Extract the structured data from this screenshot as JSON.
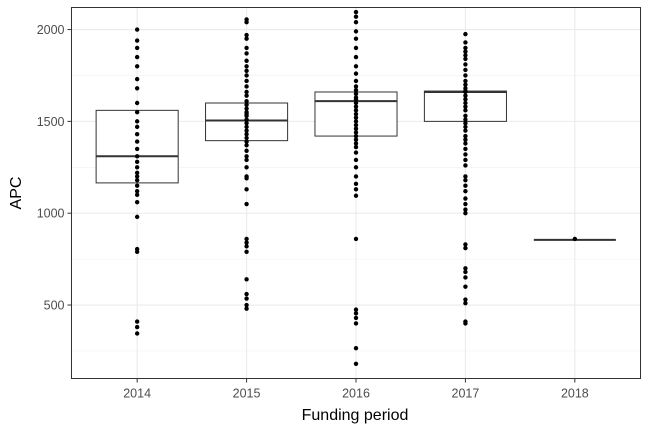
{
  "chart_data": {
    "type": "box",
    "xlabel": "Funding period",
    "ylabel": "APC",
    "categories": [
      "2014",
      "2015",
      "2016",
      "2017",
      "2018"
    ],
    "ylim": [
      100,
      2120
    ],
    "yticks": [
      500,
      1000,
      1500,
      2000
    ],
    "grid": true,
    "boxes": [
      {
        "category": "2014",
        "lower": 1165,
        "q1": 1165,
        "median": 1310,
        "q3": 1560,
        "upper": 1560
      },
      {
        "category": "2015",
        "lower": 1395,
        "q1": 1395,
        "median": 1505,
        "q3": 1600,
        "upper": 1600
      },
      {
        "category": "2016",
        "lower": 1420,
        "q1": 1420,
        "median": 1610,
        "q3": 1660,
        "upper": 1660
      },
      {
        "category": "2017",
        "lower": 1500,
        "q1": 1500,
        "median": 1660,
        "q3": 1665,
        "upper": 1665
      },
      {
        "category": "2018",
        "lower": 855,
        "q1": 855,
        "median": 855,
        "q3": 855,
        "upper": 855
      }
    ],
    "points": [
      {
        "category": "2014",
        "values": [
          2000,
          1940,
          1900,
          1850,
          1800,
          1730,
          1680,
          1600,
          1550,
          1500,
          1470,
          1430,
          1390,
          1350,
          1310,
          1280,
          1250,
          1220,
          1200,
          1180,
          1150,
          1120,
          1100,
          1060,
          980,
          805,
          790,
          410,
          380,
          345
        ]
      },
      {
        "category": "2015",
        "values": [
          2055,
          2040,
          1970,
          1950,
          1900,
          1870,
          1830,
          1800,
          1775,
          1750,
          1720,
          1690,
          1660,
          1640,
          1610,
          1590,
          1570,
          1550,
          1540,
          1530,
          1510,
          1490,
          1470,
          1450,
          1430,
          1410,
          1390,
          1370,
          1340,
          1310,
          1290,
          1250,
          1200,
          1190,
          1130,
          1050,
          860,
          840,
          820,
          790,
          640,
          560,
          535,
          500,
          480
        ]
      },
      {
        "category": "2016",
        "values": [
          2095,
          2070,
          2040,
          1990,
          1950,
          1900,
          1850,
          1800,
          1760,
          1720,
          1690,
          1670,
          1650,
          1630,
          1620,
          1600,
          1580,
          1560,
          1540,
          1520,
          1500,
          1480,
          1460,
          1440,
          1420,
          1400,
          1380,
          1360,
          1330,
          1290,
          1250,
          1200,
          1160,
          1130,
          1095,
          860,
          475,
          455,
          430,
          400,
          265,
          180
        ]
      },
      {
        "category": "2017",
        "values": [
          1975,
          1930,
          1900,
          1880,
          1860,
          1840,
          1810,
          1780,
          1750,
          1720,
          1700,
          1680,
          1665,
          1660,
          1640,
          1620,
          1600,
          1580,
          1560,
          1530,
          1510,
          1490,
          1470,
          1450,
          1420,
          1400,
          1380,
          1350,
          1320,
          1290,
          1260,
          1200,
          1180,
          1150,
          1120,
          1080,
          1050,
          1020,
          1000,
          830,
          810,
          700,
          680,
          650,
          600,
          530,
          510,
          410,
          400
        ]
      },
      {
        "category": "2018",
        "values": [
          860
        ]
      }
    ]
  }
}
